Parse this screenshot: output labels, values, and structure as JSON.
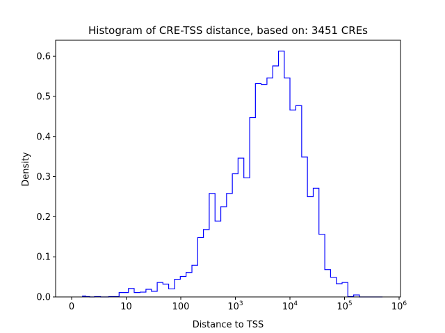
{
  "chart_data": {
    "type": "histogram",
    "title": "Histogram of CRE-TSS distance, based on: 3451 CREs",
    "xlabel": "Distance to TSS",
    "ylabel": "Density",
    "x_scale": "symlog",
    "x_tick_labels": [
      {
        "value": 0,
        "base": "0",
        "exp": ""
      },
      {
        "value": 10,
        "base": "10",
        "exp": ""
      },
      {
        "value": 100,
        "base": "100",
        "exp": ""
      },
      {
        "value": 1000,
        "base": "10",
        "exp": "3"
      },
      {
        "value": 10000,
        "base": "10",
        "exp": "4"
      },
      {
        "value": 100000,
        "base": "10",
        "exp": "5"
      },
      {
        "value": 1000000,
        "base": "10",
        "exp": "6"
      }
    ],
    "y_ticks": [
      0.0,
      0.1,
      0.2,
      0.3,
      0.4,
      0.5,
      0.6
    ],
    "y_tick_labels": [
      "0.0",
      "0.1",
      "0.2",
      "0.3",
      "0.4",
      "0.5",
      "0.6"
    ],
    "ylim": [
      0,
      0.64
    ],
    "grid": false,
    "line_color": "#0000ff",
    "bin_edges": [
      2,
      2.6,
      3.3,
      4.2,
      5.3,
      6.8,
      8.7,
      11,
      14,
      18,
      23,
      29,
      37,
      47,
      60,
      77,
      98,
      125,
      160,
      204,
      260,
      332,
      424,
      541,
      690,
      880,
      1120,
      1430,
      1830,
      2330,
      2970,
      3790,
      4840,
      6170,
      7870,
      10000,
      12800,
      16400,
      20900,
      26700,
      34000,
      43500,
      55500,
      70800,
      90300,
      115000,
      147000,
      187000,
      239000,
      305000,
      389000,
      496000
    ],
    "densities": [
      0.002,
      0.001,
      0.0,
      0.001,
      0.0,
      0.001,
      0.011,
      0.021,
      0.011,
      0.012,
      0.019,
      0.014,
      0.036,
      0.032,
      0.02,
      0.044,
      0.051,
      0.061,
      0.079,
      0.148,
      0.168,
      0.258,
      0.189,
      0.225,
      0.258,
      0.307,
      0.346,
      0.297,
      0.447,
      0.532,
      0.53,
      0.546,
      0.576,
      0.613,
      0.546,
      0.466,
      0.477,
      0.349,
      0.25,
      0.271,
      0.156,
      0.068,
      0.049,
      0.033,
      0.036,
      0.001,
      0.005,
      0.0,
      0.0,
      0.0,
      0.0
    ]
  }
}
